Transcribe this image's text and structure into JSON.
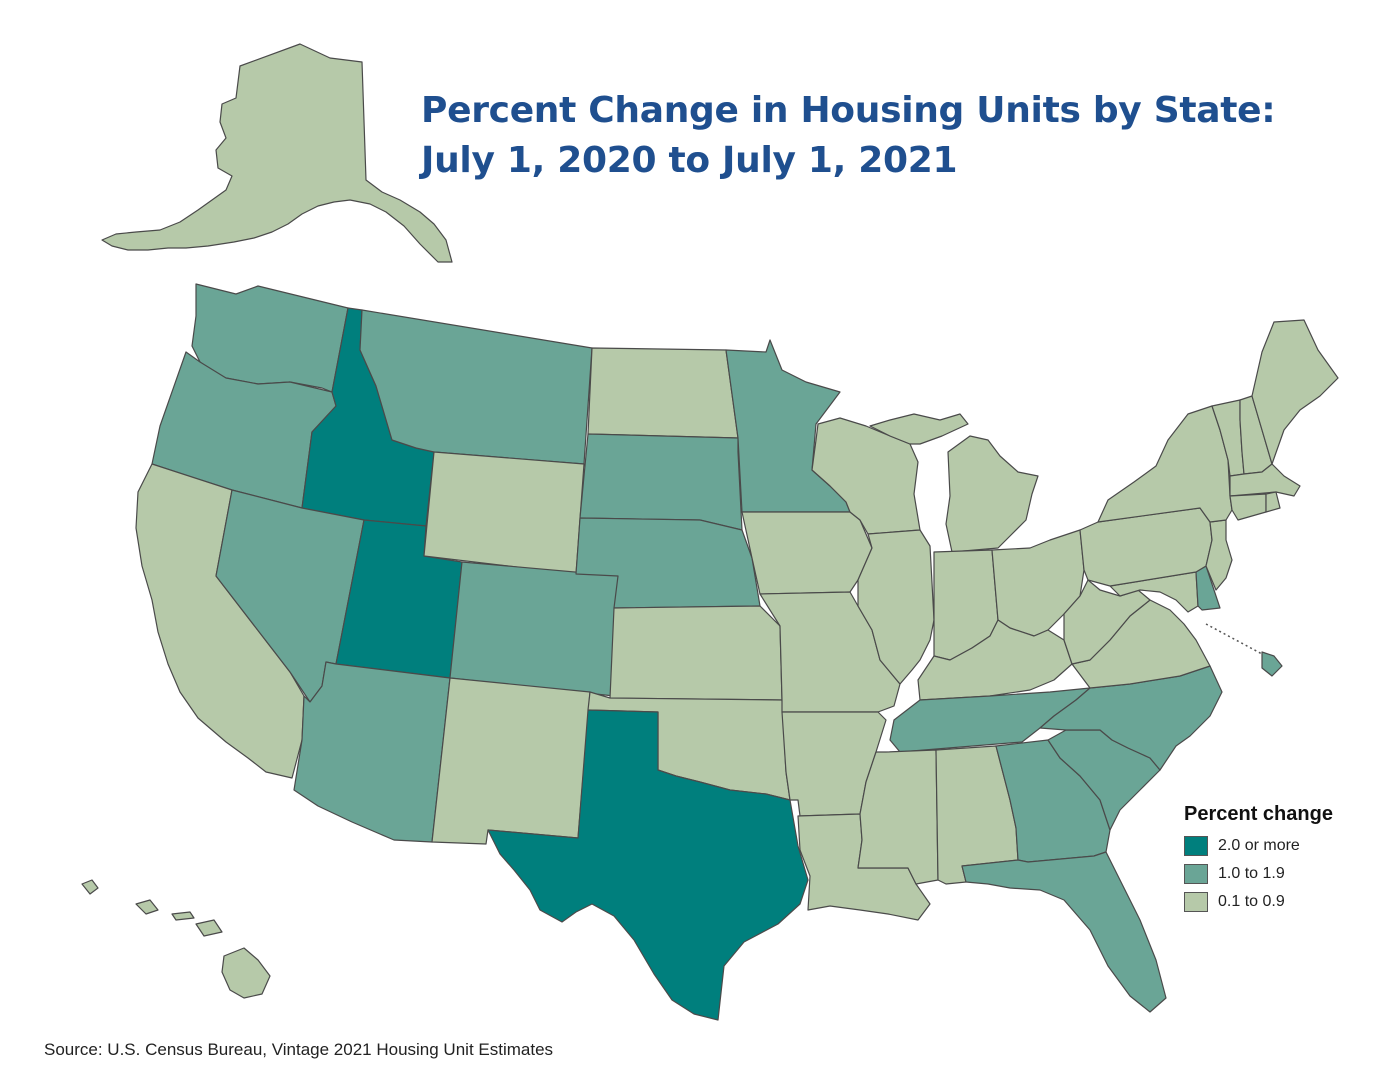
{
  "title": {
    "line1": "Percent Change in Housing Units by State:",
    "line2": "July 1, 2020 to July 1, 2021"
  },
  "legend": {
    "title": "Percent change",
    "items": [
      {
        "label": "2.0 or more",
        "color": "#007f7d"
      },
      {
        "label": "1.0 to 1.9",
        "color": "#6aa596"
      },
      {
        "label": "0.1 to 0.9",
        "color": "#b6c9a9"
      }
    ]
  },
  "source": "Source: U.S. Census Bureau, Vintage 2021 Housing Unit Estimates",
  "colors": {
    "title": "#1f4f8f",
    "border": "#4a4a4a"
  },
  "states": [
    {
      "code": "AK",
      "category": 2
    },
    {
      "code": "HI",
      "category": 2
    },
    {
      "code": "WA",
      "category": 1
    },
    {
      "code": "OR",
      "category": 1
    },
    {
      "code": "CA",
      "category": 2
    },
    {
      "code": "ID",
      "category": 0
    },
    {
      "code": "NV",
      "category": 1
    },
    {
      "code": "UT",
      "category": 0
    },
    {
      "code": "AZ",
      "category": 1
    },
    {
      "code": "MT",
      "category": 1
    },
    {
      "code": "WY",
      "category": 2
    },
    {
      "code": "CO",
      "category": 1
    },
    {
      "code": "NM",
      "category": 2
    },
    {
      "code": "ND",
      "category": 2
    },
    {
      "code": "SD",
      "category": 1
    },
    {
      "code": "NE",
      "category": 1
    },
    {
      "code": "KS",
      "category": 2
    },
    {
      "code": "OK",
      "category": 2
    },
    {
      "code": "TX",
      "category": 0
    },
    {
      "code": "MN",
      "category": 1
    },
    {
      "code": "IA",
      "category": 2
    },
    {
      "code": "MO",
      "category": 2
    },
    {
      "code": "AR",
      "category": 2
    },
    {
      "code": "LA",
      "category": 2
    },
    {
      "code": "WI",
      "category": 2
    },
    {
      "code": "IL",
      "category": 2
    },
    {
      "code": "MI",
      "category": 2
    },
    {
      "code": "IN",
      "category": 2
    },
    {
      "code": "OH",
      "category": 2
    },
    {
      "code": "KY",
      "category": 2
    },
    {
      "code": "TN",
      "category": 1
    },
    {
      "code": "MS",
      "category": 2
    },
    {
      "code": "AL",
      "category": 2
    },
    {
      "code": "GA",
      "category": 1
    },
    {
      "code": "FL",
      "category": 1
    },
    {
      "code": "SC",
      "category": 1
    },
    {
      "code": "NC",
      "category": 1
    },
    {
      "code": "VA",
      "category": 2
    },
    {
      "code": "WV",
      "category": 2
    },
    {
      "code": "PA",
      "category": 2
    },
    {
      "code": "NY",
      "category": 2
    },
    {
      "code": "NJ",
      "category": 2
    },
    {
      "code": "DE",
      "category": 1
    },
    {
      "code": "MD",
      "category": 2
    },
    {
      "code": "DC",
      "category": 1
    },
    {
      "code": "VT",
      "category": 2
    },
    {
      "code": "NH",
      "category": 2
    },
    {
      "code": "ME",
      "category": 2
    },
    {
      "code": "MA",
      "category": 2
    },
    {
      "code": "CT",
      "category": 2
    },
    {
      "code": "RI",
      "category": 2
    }
  ]
}
